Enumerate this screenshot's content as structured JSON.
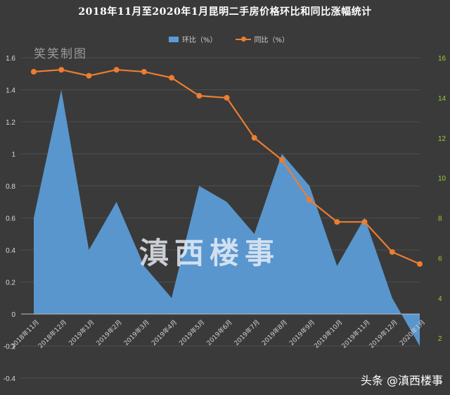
{
  "title": "2018年11月至2020年1月昆明二手房价格环比和同比涨幅统计",
  "watermark_top": "笑笑制图",
  "watermark_center": "滇西楼事",
  "credit": "头条 @滇西楼事",
  "chart_data": {
    "type": "area+line",
    "categories": [
      "2018年11月",
      "2018年12月",
      "2019年1月",
      "2019年2月",
      "2019年3月",
      "2019年4月",
      "2019年5月",
      "2019年6月",
      "2019年7月",
      "2019年8月",
      "2019年9月",
      "2019年10月",
      "2019年11月",
      "2019年12月",
      "2020年1月"
    ],
    "series": [
      {
        "name": "环比（%）",
        "type": "area",
        "axis": "left",
        "values": [
          0.6,
          1.4,
          0.4,
          0.7,
          0.3,
          0.1,
          0.8,
          0.7,
          0.5,
          1.0,
          0.8,
          0.3,
          0.6,
          0.1,
          -0.2
        ],
        "color": "#5b9bd5"
      },
      {
        "name": "同比（%）",
        "type": "line",
        "axis": "right",
        "values": [
          15.3,
          15.4,
          15.1,
          15.4,
          15.3,
          15.0,
          14.1,
          14.0,
          12.0,
          10.9,
          8.9,
          7.8,
          7.8,
          6.3,
          5.7
        ],
        "color": "#ed7d31"
      }
    ],
    "y_left": {
      "min": -0.4,
      "max": 1.6,
      "step": 0.2,
      "ticks": [
        "-0.4",
        "-0.2",
        "0",
        "0.2",
        "0.4",
        "0.6",
        "0.8",
        "1",
        "1.2",
        "1.4",
        "1.6"
      ]
    },
    "y_right": {
      "min": 0,
      "max": 16,
      "step": 2,
      "ticks": [
        "2",
        "4",
        "6",
        "8",
        "10",
        "12",
        "14",
        "16"
      ]
    },
    "grid": true,
    "legend_position": "top"
  }
}
